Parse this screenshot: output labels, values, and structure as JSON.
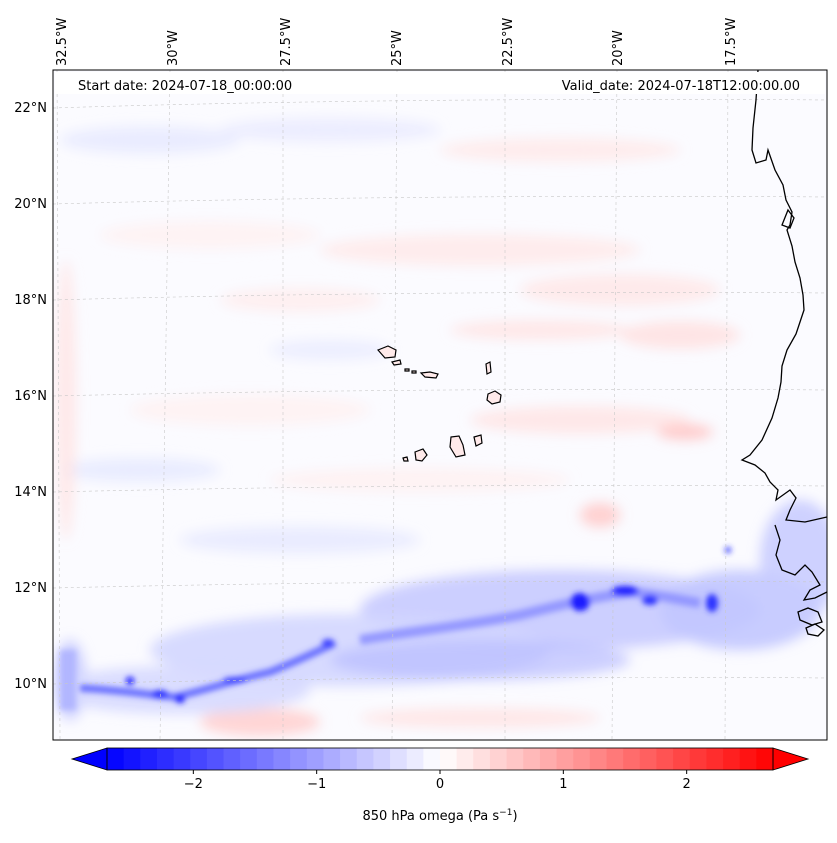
{
  "map": {
    "start_label": "Start date: 2024-07-18_00:00:00",
    "valid_label": "Valid_date: 2024-07-18T12:00:00.00",
    "lon_labels": [
      "32.5°W",
      "30°W",
      "27.5°W",
      "25°W",
      "22.5°W",
      "20°W",
      "17.5°W"
    ],
    "lat_labels": [
      "22°N",
      "20°N",
      "18°N",
      "16°N",
      "14°N",
      "12°N",
      "10°N"
    ],
    "colors": {
      "negative": "#0000ff",
      "neutral": "#ffffff",
      "positive": "#ff0000",
      "coast": "#000000"
    }
  },
  "colorbar": {
    "label": "850 hPa omega (Pa s",
    "label_sup": "−1",
    "label_end": ")",
    "ticks": [
      "−2",
      "−1",
      "0",
      "1",
      "2"
    ],
    "vmin": -2.7,
    "vmax": 2.7
  }
}
